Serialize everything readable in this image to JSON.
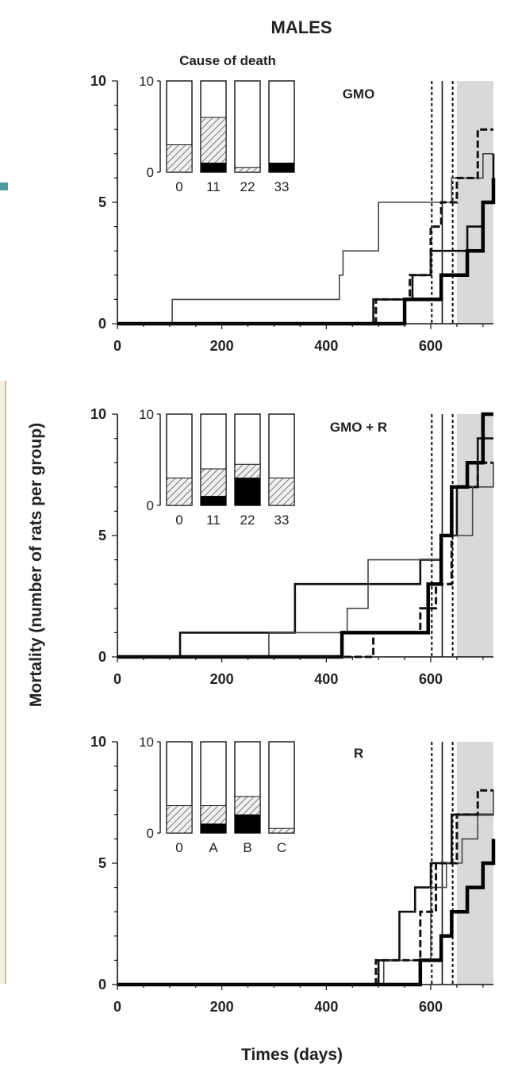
{
  "title": "MALES",
  "ylabel": "Mortality (number of rats per group)",
  "xlabel": "Times (days)",
  "inset_title": "Cause of death",
  "colors": {
    "shade": "#d9d9d9",
    "line": "#111111",
    "thin": "#444444",
    "hatch": "#777777",
    "black": "#000000",
    "accent_left": "#4f9c9c",
    "accent_left2": "#c9c49a"
  },
  "chart_data": [
    {
      "type": "line",
      "panel_label": "GMO",
      "xlim": [
        0,
        720
      ],
      "ylim": [
        0,
        10
      ],
      "x_ticks": [
        0,
        200,
        400,
        600
      ],
      "y_ticks": [
        0,
        5,
        10
      ],
      "shaded_from": 650,
      "vlines": [
        {
          "x": 602,
          "style": "dotted"
        },
        {
          "x": 622,
          "style": "solid"
        },
        {
          "x": 642,
          "style": "dotted"
        }
      ],
      "series": [
        {
          "style": "thin",
          "x": [
            0,
            105,
            425,
            432,
            500,
            600,
            640,
            700,
            720
          ],
          "y": [
            0,
            1,
            2,
            3,
            5,
            5,
            6,
            7,
            7
          ]
        },
        {
          "style": "dashed",
          "x": [
            0,
            495,
            560,
            600,
            620,
            650,
            690,
            720
          ],
          "y": [
            0,
            1,
            2,
            4,
            5,
            6,
            8,
            8
          ]
        },
        {
          "style": "medium",
          "x": [
            0,
            490,
            565,
            600,
            630,
            670,
            700,
            720
          ],
          "y": [
            0,
            1,
            2,
            3,
            3,
            4,
            5,
            7
          ]
        },
        {
          "style": "thick",
          "x": [
            0,
            550,
            600,
            620,
            640,
            670,
            700,
            720
          ],
          "y": [
            0,
            1,
            1,
            2,
            2,
            3,
            5,
            6
          ]
        }
      ],
      "inset": {
        "categories": [
          "0",
          "11",
          "22",
          "33"
        ],
        "ylim": [
          0,
          10
        ],
        "y_ticks": [
          0,
          10
        ],
        "hatched": [
          3,
          5,
          0.5,
          0
        ],
        "black": [
          0,
          1,
          0,
          1
        ]
      }
    },
    {
      "type": "line",
      "panel_label": "GMO + R",
      "xlim": [
        0,
        720
      ],
      "ylim": [
        0,
        10
      ],
      "x_ticks": [
        0,
        200,
        400,
        600
      ],
      "y_ticks": [
        0,
        5,
        10
      ],
      "shaded_from": 650,
      "vlines": [
        {
          "x": 602,
          "style": "dotted"
        },
        {
          "x": 622,
          "style": "solid"
        },
        {
          "x": 642,
          "style": "dotted"
        }
      ],
      "series": [
        {
          "style": "medium",
          "x": [
            0,
            120,
            340,
            580,
            620,
            650,
            690,
            720
          ],
          "y": [
            0,
            1,
            3,
            4,
            5,
            7,
            9,
            9
          ]
        },
        {
          "style": "thin",
          "x": [
            0,
            290,
            440,
            480,
            590,
            620,
            680,
            720
          ],
          "y": [
            0,
            1,
            2,
            4,
            4,
            5,
            7,
            8
          ]
        },
        {
          "style": "dashed",
          "x": [
            0,
            490,
            580,
            610,
            640,
            690,
            720
          ],
          "y": [
            0,
            1,
            2,
            3,
            7,
            8,
            8
          ]
        },
        {
          "style": "thick",
          "x": [
            0,
            430,
            595,
            620,
            640,
            670,
            700,
            720
          ],
          "y": [
            0,
            1,
            3,
            5,
            7,
            8,
            10,
            10
          ]
        }
      ],
      "inset": {
        "categories": [
          "0",
          "11",
          "22",
          "33"
        ],
        "ylim": [
          0,
          10
        ],
        "y_ticks": [
          0,
          10
        ],
        "hatched": [
          3,
          3,
          1.5,
          3
        ],
        "black": [
          0,
          1,
          3,
          0
        ]
      }
    },
    {
      "type": "line",
      "panel_label": "R",
      "xlim": [
        0,
        720
      ],
      "ylim": [
        0,
        10
      ],
      "x_ticks": [
        0,
        200,
        400,
        600
      ],
      "y_ticks": [
        0,
        5,
        10
      ],
      "shaded_from": 650,
      "vlines": [
        {
          "x": 602,
          "style": "dotted"
        },
        {
          "x": 622,
          "style": "solid"
        },
        {
          "x": 642,
          "style": "dotted"
        }
      ],
      "series": [
        {
          "style": "medium",
          "x": [
            0,
            500,
            540,
            570,
            600,
            640,
            720
          ],
          "y": [
            0,
            1,
            3,
            4,
            5,
            7,
            7
          ]
        },
        {
          "style": "thin",
          "x": [
            0,
            510,
            600,
            630,
            660,
            690,
            720
          ],
          "y": [
            0,
            1,
            4,
            5,
            6,
            7,
            8
          ]
        },
        {
          "style": "dashed",
          "x": [
            0,
            495,
            580,
            610,
            650,
            690,
            720
          ],
          "y": [
            0,
            1,
            3,
            5,
            7,
            8,
            8
          ]
        },
        {
          "style": "thick",
          "x": [
            0,
            580,
            620,
            640,
            670,
            700,
            720
          ],
          "y": [
            0,
            1,
            2,
            3,
            4,
            5,
            6
          ]
        }
      ],
      "inset": {
        "categories": [
          "0",
          "A",
          "B",
          "C"
        ],
        "ylim": [
          0,
          10
        ],
        "y_ticks": [
          0,
          10
        ],
        "hatched": [
          3,
          2,
          2,
          0.5
        ],
        "black": [
          0,
          1,
          2,
          0
        ]
      }
    }
  ]
}
